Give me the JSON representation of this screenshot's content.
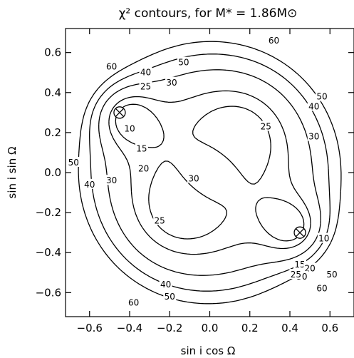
{
  "chart_data": {
    "type": "contour",
    "title": "χ² contours, for M* = 1.86M⊙",
    "xlabel": "sin i cos Ω",
    "ylabel": "sin i sin Ω",
    "xlim": [
      -0.72,
      0.72
    ],
    "ylim": [
      -0.72,
      0.72
    ],
    "xticks": [
      -0.6,
      -0.4,
      -0.2,
      0.0,
      0.2,
      0.4,
      0.6
    ],
    "yticks": [
      -0.6,
      -0.4,
      -0.2,
      0.0,
      0.2,
      0.4,
      0.6
    ],
    "xtick_labels": [
      "−0.6",
      "−0.4",
      "−0.2",
      "0.0",
      "0.2",
      "0.4",
      "0.6"
    ],
    "ytick_labels": [
      "−0.6",
      "−0.4",
      "−0.2",
      "0.0",
      "0.2",
      "0.4",
      "0.6"
    ],
    "minima": [
      {
        "x": -0.45,
        "y": 0.3
      },
      {
        "x": 0.45,
        "y": -0.3
      }
    ],
    "levels": [
      2,
      4,
      6,
      8,
      10,
      15,
      20,
      25,
      30,
      40,
      50,
      60
    ],
    "contour_labels": [
      {
        "text": "60",
        "x": -0.49,
        "y": 0.53
      },
      {
        "text": "60",
        "x": 0.32,
        "y": 0.66
      },
      {
        "text": "50",
        "x": -0.13,
        "y": 0.55
      },
      {
        "text": "40",
        "x": -0.32,
        "y": 0.5
      },
      {
        "text": "30",
        "x": -0.19,
        "y": 0.45
      },
      {
        "text": "25",
        "x": -0.32,
        "y": 0.43
      },
      {
        "text": "10",
        "x": -0.4,
        "y": 0.22
      },
      {
        "text": "15",
        "x": -0.34,
        "y": 0.12
      },
      {
        "text": "20",
        "x": -0.33,
        "y": 0.02
      },
      {
        "text": "30",
        "x": -0.49,
        "y": -0.04
      },
      {
        "text": "40",
        "x": -0.6,
        "y": -0.06
      },
      {
        "text": "50",
        "x": -0.68,
        "y": 0.05
      },
      {
        "text": "25",
        "x": 0.28,
        "y": 0.23
      },
      {
        "text": "30",
        "x": 0.52,
        "y": 0.18
      },
      {
        "text": "40",
        "x": 0.52,
        "y": 0.33
      },
      {
        "text": "50",
        "x": 0.56,
        "y": 0.38
      },
      {
        "text": "30",
        "x": -0.08,
        "y": -0.03
      },
      {
        "text": "25",
        "x": -0.25,
        "y": -0.24
      },
      {
        "text": "10",
        "x": 0.57,
        "y": -0.33
      },
      {
        "text": "15",
        "x": 0.45,
        "y": -0.46
      },
      {
        "text": "20",
        "x": 0.5,
        "y": -0.48
      },
      {
        "text": "30",
        "x": 0.46,
        "y": -0.52
      },
      {
        "text": "25",
        "x": 0.43,
        "y": -0.51
      },
      {
        "text": "40",
        "x": -0.22,
        "y": -0.56
      },
      {
        "text": "50",
        "x": -0.2,
        "y": -0.62
      },
      {
        "text": "60",
        "x": -0.38,
        "y": -0.65
      },
      {
        "text": "60",
        "x": 0.56,
        "y": -0.58
      },
      {
        "text": "50",
        "x": 0.61,
        "y": -0.51
      }
    ]
  }
}
